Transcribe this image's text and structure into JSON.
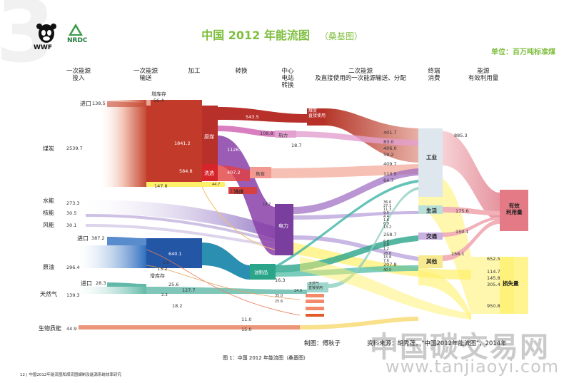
{
  "header": {
    "title": "中国 2012 年能流图",
    "subtitle": "（桑基图）",
    "unit": "单位：百万吨标准煤",
    "logos": {
      "left": "WWF",
      "right": "NRDC"
    }
  },
  "column_headers": [
    "一次能源\n投入",
    "一次能源\n输送",
    "加工",
    "转换",
    "中心\n电站\n转换",
    "二次能源\n及直接使用的一次能源输送、分配",
    "终端\n消费",
    "能源\n有效利用量"
  ],
  "chart_data": {
    "type": "sankey",
    "title": "中国 2012 年能流图",
    "unit": "单位：百万吨标准煤",
    "sources": [
      {
        "name": "煤炭",
        "value": 2539.7,
        "import": 138.5
      },
      {
        "name": "水能",
        "value": 273.3
      },
      {
        "name": "核能",
        "value": 30.5
      },
      {
        "name": "风能",
        "value": 30.1
      },
      {
        "name": "原油",
        "value": 296.4,
        "import": 387.2
      },
      {
        "name": "天然气",
        "value": 139.3,
        "import": 28.3
      },
      {
        "name": "生物质能",
        "value": 44.9
      }
    ],
    "stages": [
      "原煤",
      "洗选",
      "焦炭",
      "洗煤",
      "电力",
      "油制品",
      "煤炭直接使用",
      "热力"
    ],
    "end_use": [
      "工业",
      "生活",
      "交通",
      "其他"
    ],
    "outcomes": [
      "有效利用量",
      "损失量"
    ],
    "labeled_values": [
      "138.5",
      "2539.7",
      "273.3",
      "30.5",
      "30.1",
      "387.2",
      "296.4",
      "28.3",
      "139.3",
      "44.9",
      "56.4",
      "1841.2",
      "584.8",
      "147.8",
      "44.7",
      "543.5",
      "108.8",
      "18.7",
      "1126.2",
      "35.2",
      "407.2",
      "132.9",
      "640.1",
      "2.6",
      "13.2",
      "25.6",
      "127.7",
      "2.3",
      "18.2",
      "16.3",
      "24.0",
      "11.0",
      "15.0",
      "401.7",
      "83.0",
      "406.0",
      "59.2",
      "409.7",
      "113.5",
      "64.7",
      "258.7",
      "207.8",
      "885.3",
      "175.6",
      "150.1",
      "156.1",
      "652.5",
      "114.7",
      "145.8",
      "305.4",
      "950.8"
    ]
  },
  "labels": {
    "import": "进口",
    "stock_change": "增库存",
    "coal": "煤炭",
    "hydro": "水能",
    "nuclear": "核能",
    "wind": "风能",
    "oil": "原油",
    "gas": "天然气",
    "biomass": "生物质能",
    "raw_coal": "原煤",
    "washing": "洗选",
    "coke": "焦炭",
    "washed_coal": "洗煤",
    "coal_direct": "煤炭\n直接使用",
    "heat": "热力",
    "power": "电力",
    "oil_products": "油制品",
    "industry": "工业",
    "residential": "生活",
    "transport": "交通",
    "other": "其他",
    "effective": "有效\n利用量",
    "loss": "损失量",
    "gas_direct": "天然气\n直接使用"
  },
  "numbers": {
    "coal_import": "138.5",
    "coal": "2539.7",
    "hydro": "273.3",
    "nuclear": "30.5",
    "wind": "30.1",
    "oil_import": "387.2",
    "oil": "296.4",
    "gas_import": "28.3",
    "gas": "139.3",
    "biomass": "44.9",
    "stock_coal": "56.4",
    "raw_coal": "1841.2",
    "washing": "584.8",
    "yellow_bypass": "147.8",
    "small_44": "44.7",
    "coal_direct": "543.5",
    "heat_in": "108.8",
    "heat_out": "18.7",
    "power_in": "1126.2",
    "v35": "35.2",
    "coke_in": "407.2",
    "coke_out": "132.9",
    "oil_in": "640.1",
    "v2_6": "2.6",
    "v13_2": "13.2",
    "v25_6": "25.6",
    "v127_7": "127.7",
    "v2_3": "2.3",
    "v18_2": "18.2",
    "v16_3": "16.3",
    "v24": "24.0",
    "v11": "11.0",
    "v15": "15.0",
    "ind1": "401.7",
    "ind2": "83.0",
    "ind3": "406.0",
    "ind4": "59.2",
    "ind5": "409.7",
    "res1": "113.5",
    "res2": "64.7",
    "tr1": "258.7",
    "oth1": "207.8",
    "eff_ind": "885.3",
    "eff_res": "175.6",
    "eff_tr": "150.1",
    "eff_oth": "156.1",
    "loss1": "652.5",
    "loss2": "114.7",
    "loss3": "145.8",
    "loss4": "305.4",
    "loss5": "950.8",
    "tiny_a": "10.7",
    "tiny_b": "35.0",
    "tiny_c": "25.6",
    "res_s1": "36.6",
    "res_s2": "27.1",
    "res_s3": "11.3",
    "res_s4": "9.5",
    "res_s5": "4.4",
    "res_s6": "1.6",
    "res_s7": "6.9",
    "res_s8": "13.2",
    "tr_s1": "6.8",
    "tr_s2": "2.8",
    "tr_s3": "1.2",
    "oth_s1": "28.6",
    "oth_s2": "15.8",
    "oth_s3": "7.6",
    "oth_s4": "40.5"
  },
  "credits": {
    "made_by": "制图：傅秋子",
    "source": "资料来源：胡秀莲，\"中国2012年能流图\"，2014年"
  },
  "caption": "图 1：中国 2012 年能流图（桑基图）",
  "footer": "12 | 中国2012年能流图和煤流图编制及能源系统效率研究",
  "watermark": {
    "line1": "中国碳交易网",
    "line2": "www.tanjiaoyi.com"
  },
  "colors": {
    "coal": "#b5382a",
    "washing": "#d42a2a",
    "coal_light": "#f4b9a8",
    "electricity": "#7a3f9e",
    "oil": "#2456a6",
    "oil_products": "#2aa58a",
    "gas": "#5fb8a8",
    "biomass": "#e25a2a",
    "heat": "#d05fb0",
    "yellow": "#fff06a",
    "industry_box": "#dfe7ee",
    "effective_box": "#e37a86",
    "hydro": "#c6b7df",
    "title_green": "#7fbf3f"
  }
}
